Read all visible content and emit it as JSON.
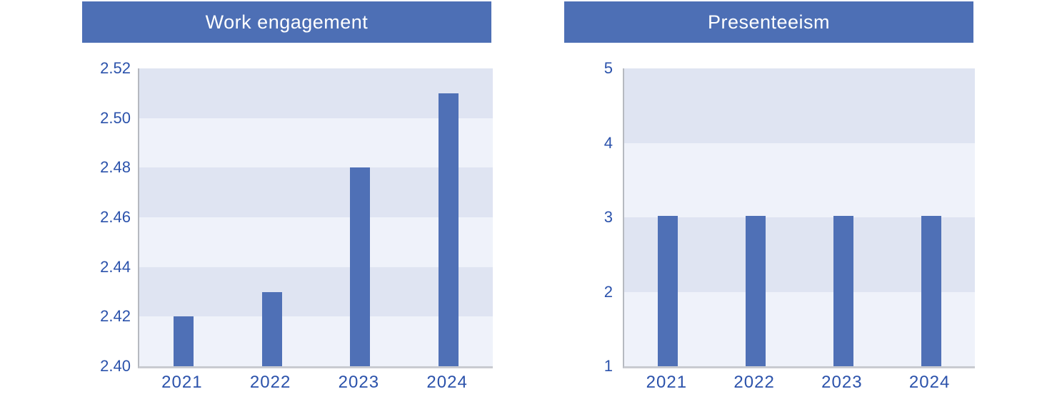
{
  "figure": {
    "background": "#ffffff"
  },
  "colors": {
    "title_bar_bg": "#4d6fb5",
    "title_text": "#ffffff",
    "bar": "#4f70b6",
    "band_dark": "#dfe4f2",
    "band_light": "#eff2fa",
    "axis_label": "#2b52ab",
    "axis_line": "#b6b9c0",
    "baseline": "#c9cbd1",
    "background": "#ffffff"
  },
  "chart_data": [
    {
      "type": "bar",
      "title": "Work engagement",
      "categories": [
        "2021",
        "2022",
        "2023",
        "2024"
      ],
      "values": [
        2.42,
        2.43,
        2.48,
        2.51
      ],
      "ylim": [
        2.4,
        2.52
      ],
      "ytick_step": 0.02,
      "yticks": [
        "2.52",
        "2.50",
        "2.48",
        "2.46",
        "2.44",
        "2.42",
        "2.40"
      ],
      "xlabel": "",
      "ylabel": "",
      "grid": "alternating-horizontal-bands",
      "legend": "none",
      "bar_color": "#4f70b6"
    },
    {
      "type": "bar",
      "title": "Presenteeism",
      "categories": [
        "2021",
        "2022",
        "2023",
        "2024"
      ],
      "values": [
        3.02,
        3.02,
        3.02,
        3.02
      ],
      "ylim": [
        1,
        5
      ],
      "ytick_step": 1,
      "yticks": [
        "5",
        "4",
        "3",
        "2",
        "1"
      ],
      "xlabel": "",
      "ylabel": "",
      "grid": "alternating-horizontal-bands",
      "legend": "none",
      "bar_color": "#4f70b6"
    }
  ]
}
